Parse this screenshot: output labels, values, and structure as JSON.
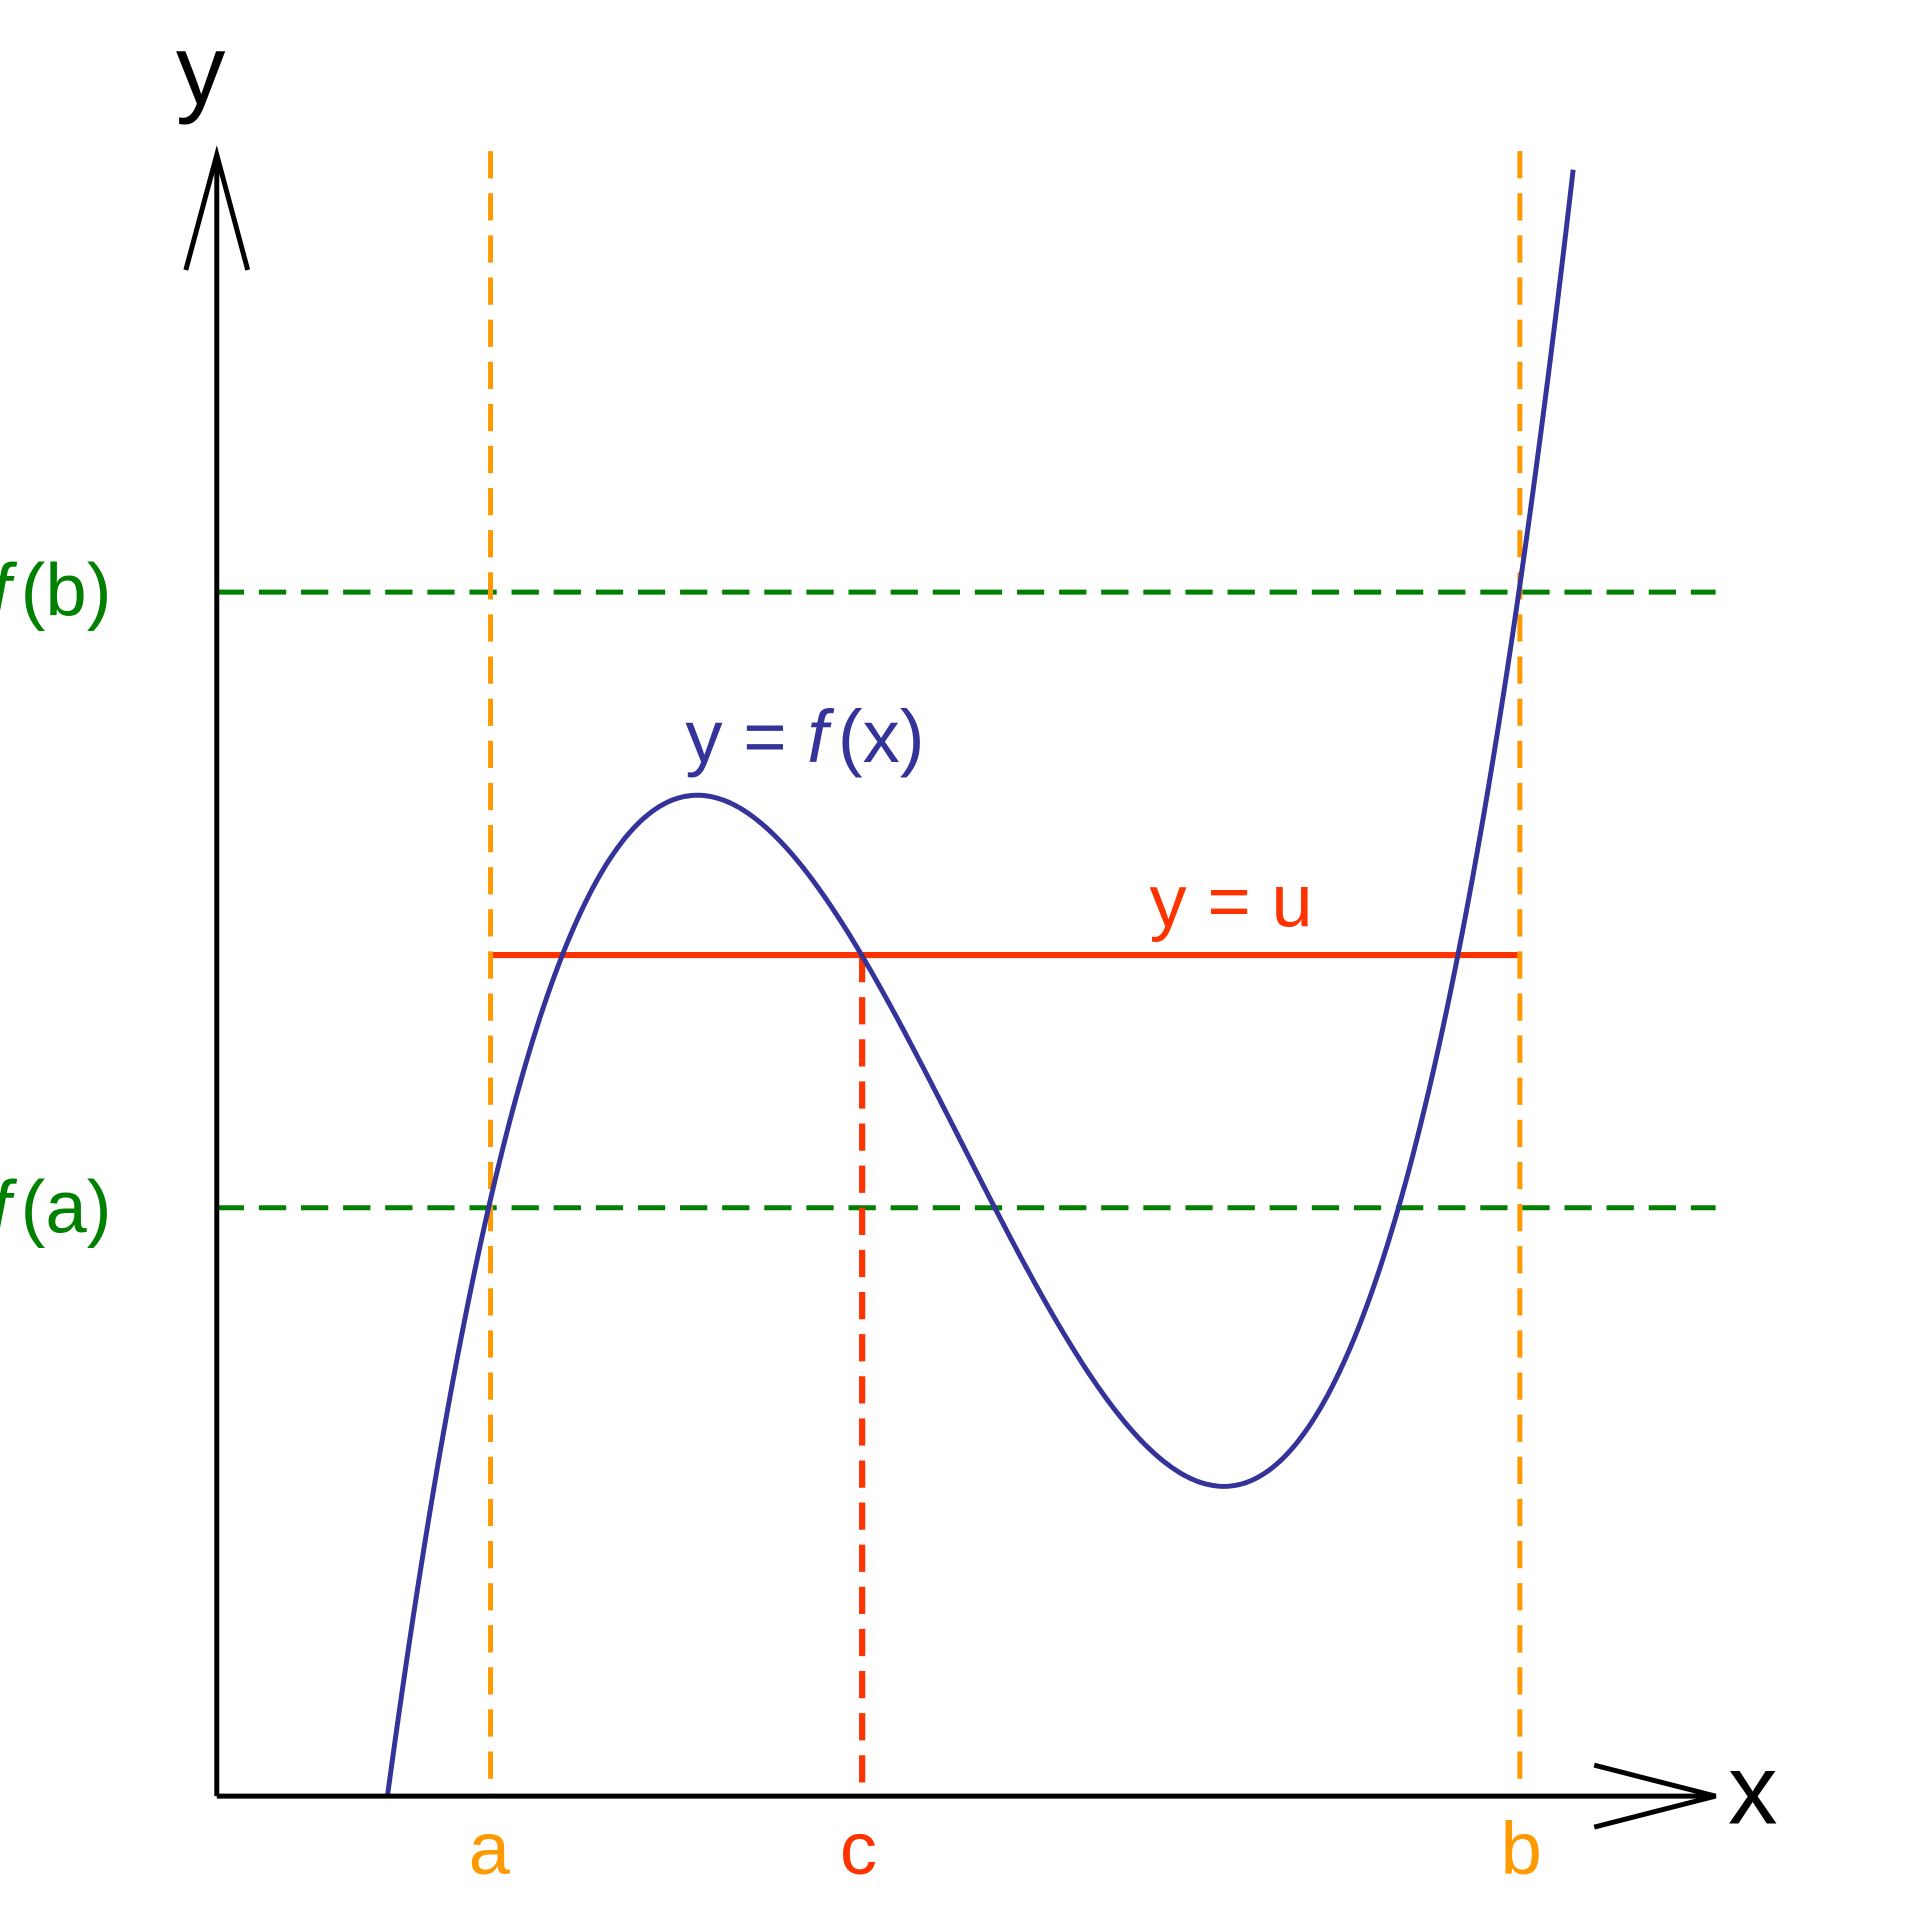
{
  "axes": {
    "y_label": "y",
    "x_label": "x"
  },
  "level_labels": {
    "f_b": [
      {
        "text": "f",
        "italic": true
      },
      {
        "text": "(b)"
      }
    ],
    "f_a": [
      {
        "text": "f",
        "italic": true
      },
      {
        "text": "(a)"
      }
    ]
  },
  "curve_label": [
    {
      "text": "y = "
    },
    {
      "text": "f",
      "italic": true
    },
    {
      "text": "(x)"
    }
  ],
  "line_label": "y = u",
  "point_labels": {
    "a": "a",
    "c": "c",
    "b": "b"
  }
}
